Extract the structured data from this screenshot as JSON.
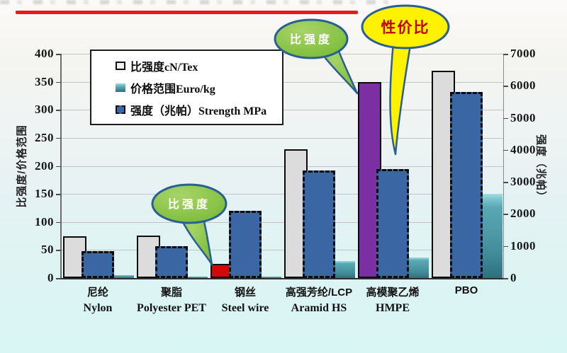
{
  "page": {
    "background_top": "#fbfaf8",
    "background_bottom": "#d8f6f4",
    "title_rule_color": "#e8191c"
  },
  "legend": {
    "items": [
      {
        "label": "比强度cN/Tex",
        "swatch": "specific-strength"
      },
      {
        "label": "价格范围Euro/kg",
        "swatch": "price-range"
      },
      {
        "label": "强度（兆帕）Strength MPa",
        "swatch": "strength-mpa"
      }
    ]
  },
  "callouts": [
    {
      "text": "比强度",
      "style": "green"
    },
    {
      "text": "比强度",
      "style": "green"
    },
    {
      "text": "性价比",
      "style": "yellow"
    }
  ],
  "colors": {
    "bar_gray": "#dcdcdc",
    "bar_blue": "#3a67a4",
    "bar_teal": "#4f9aa7",
    "bar_red": "#d40808",
    "bar_purple": "#7b2fa3",
    "grid": "#c3c3c3",
    "callout_green": "#85c340",
    "callout_border": "#2a5f93",
    "callout_yellow": "#fff200",
    "callout_text_red": "#c40000",
    "title_rule": "#e8191c"
  },
  "chart_data": {
    "type": "bar",
    "title": "",
    "categories": [
      {
        "zh": "尼纶",
        "en": "Nylon"
      },
      {
        "zh": "聚脂",
        "en": "Polyester PET"
      },
      {
        "zh": "钢丝",
        "en": "Steel wire"
      },
      {
        "zh": "高强芳纶/LCP",
        "en": "Aramid HS"
      },
      {
        "zh": "高模聚乙烯",
        "en": "HMPE"
      },
      {
        "zh": "PBO",
        "en": ""
      }
    ],
    "series": [
      {
        "name": "比强度cN/Tex",
        "axis": "left",
        "values": [
          75,
          76,
          25,
          230,
          350,
          370
        ],
        "bar_colors": [
          "#dcdcdc",
          "#dcdcdc",
          "#d40808",
          "#dcdcdc",
          "#7b2fa3",
          "#dcdcdc"
        ]
      },
      {
        "name": "价格范围Euro/kg",
        "axis": "left",
        "values": [
          5,
          3,
          2,
          30,
          36,
          150
        ]
      },
      {
        "name": "强度（兆帕）Strength MPa",
        "axis": "right",
        "values": [
          850,
          1000,
          2100,
          3350,
          3400,
          5800
        ]
      }
    ],
    "left_axis": {
      "title": "比强度/价格范围",
      "min": 0,
      "max": 400,
      "step": 50
    },
    "right_axis": {
      "title": "强度（兆帕）",
      "min": 0,
      "max": 7000,
      "step": 1000
    },
    "grid": true,
    "legend_position": "top-left-inside"
  }
}
